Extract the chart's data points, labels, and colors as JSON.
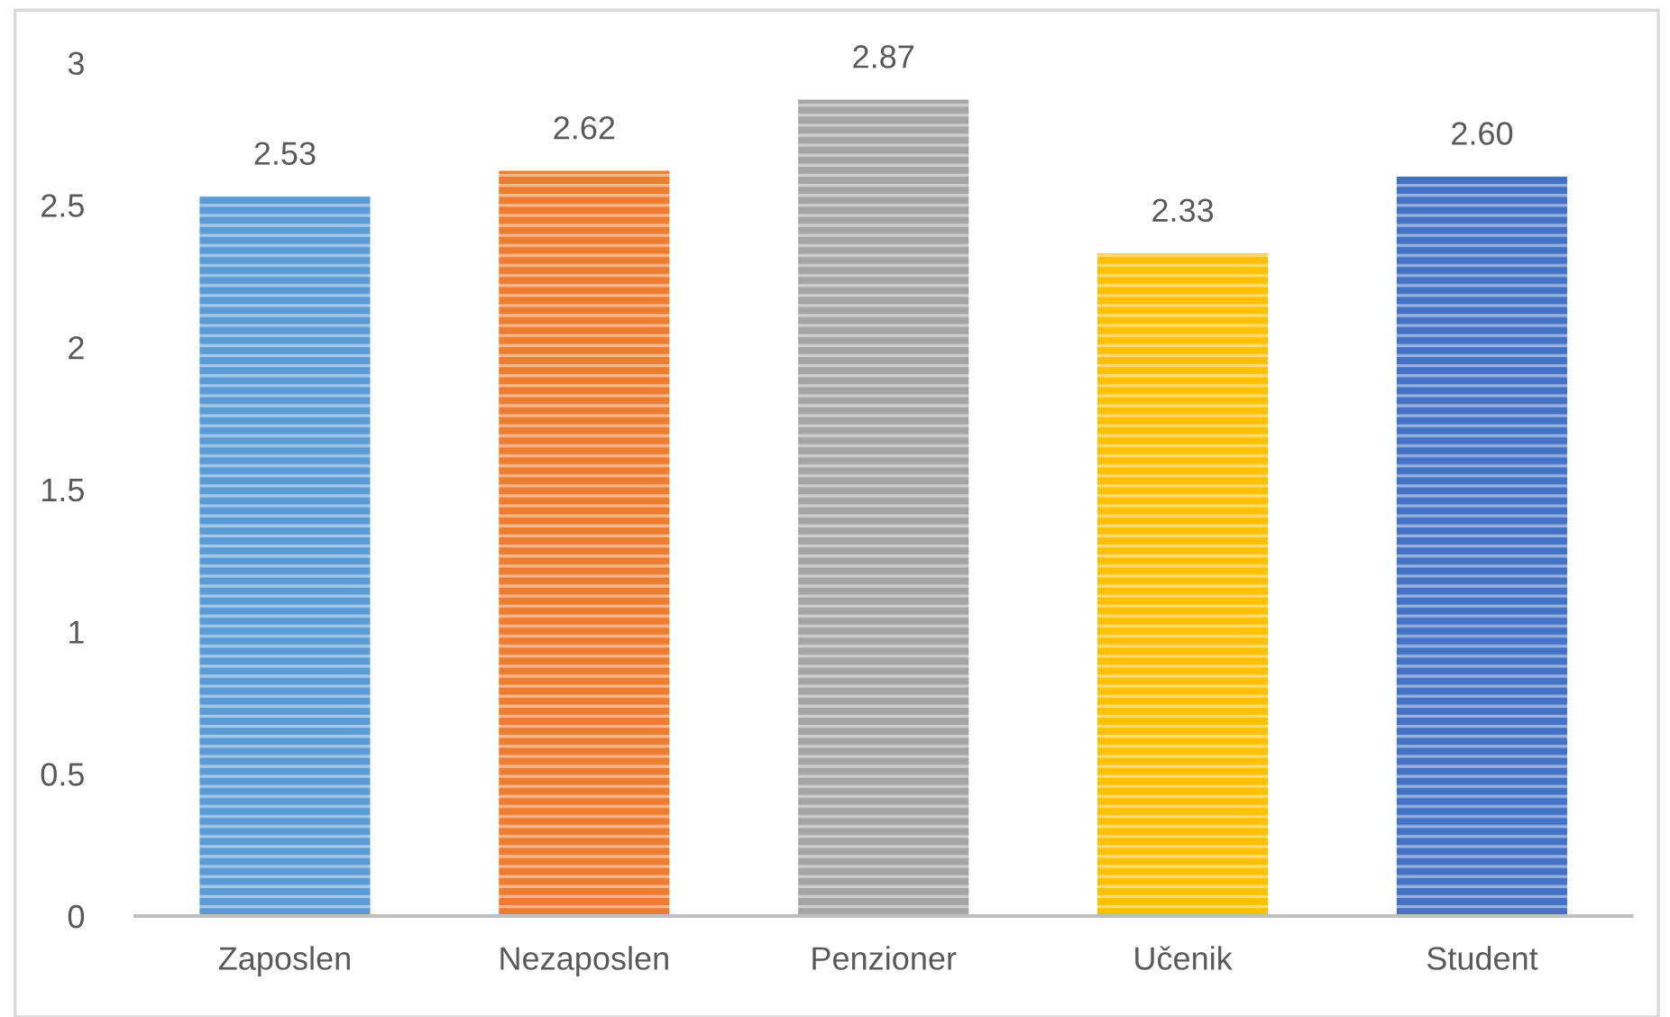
{
  "chart_data": {
    "type": "bar",
    "categories": [
      "Zaposlen",
      "Nezaposlen",
      "Penzioner",
      "Učenik",
      "Student"
    ],
    "values": [
      2.53,
      2.62,
      2.87,
      2.33,
      2.6
    ],
    "colors": [
      "#5b9bd5",
      "#ed7d31",
      "#a5a5a5",
      "#ffc000",
      "#4472c4"
    ],
    "value_labels": [
      "2.53",
      "2.62",
      "2.87",
      "2.33",
      "2.60"
    ],
    "ylim": [
      0,
      3
    ],
    "yticks": [
      0,
      0.5,
      1,
      1.5,
      2,
      2.5,
      3
    ],
    "grid": false
  }
}
